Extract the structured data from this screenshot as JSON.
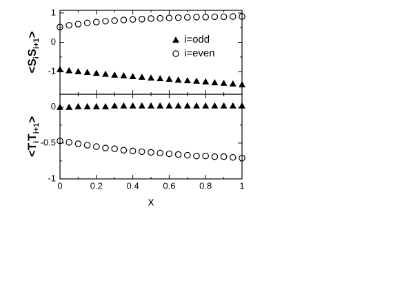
{
  "chart_data": [
    {
      "type": "scatter",
      "y_label": [
        "<S",
        "i",
        "S",
        "i+1",
        ">"
      ],
      "x": [
        0,
        0.05,
        0.1,
        0.15,
        0.2,
        0.25,
        0.3,
        0.35,
        0.4,
        0.45,
        0.5,
        0.55,
        0.6,
        0.65,
        0.7,
        0.75,
        0.8,
        0.85,
        0.9,
        0.95,
        1
      ],
      "series": [
        {
          "name": "i=odd",
          "color": "#000000",
          "marker": "triangle",
          "values": [
            -0.92,
            -0.96,
            -0.99,
            -1.02,
            -1.05,
            -1.08,
            -1.11,
            -1.13,
            -1.16,
            -1.18,
            -1.21,
            -1.23,
            -1.25,
            -1.28,
            -1.3,
            -1.32,
            -1.34,
            -1.37,
            -1.39,
            -1.41,
            -1.44
          ]
        },
        {
          "name": "i=even",
          "color": "#000000",
          "marker": "circle",
          "values": [
            0.52,
            0.58,
            0.62,
            0.66,
            0.69,
            0.72,
            0.74,
            0.76,
            0.78,
            0.79,
            0.81,
            0.82,
            0.83,
            0.84,
            0.85,
            0.86,
            0.86,
            0.87,
            0.87,
            0.88,
            0.88
          ]
        }
      ],
      "xlim": [
        0,
        1
      ],
      "xticks": [
        0,
        0.2,
        0.4,
        0.6,
        0.8,
        1
      ],
      "ylim": [
        -1.77,
        1.09
      ],
      "yticks": [
        -1,
        0,
        1
      ],
      "legend": "center right"
    },
    {
      "type": "scatter",
      "x_label": "x",
      "y_label": [
        "<T",
        "i",
        "T",
        "i+1",
        ">"
      ],
      "x": [
        0,
        0.05,
        0.1,
        0.15,
        0.2,
        0.25,
        0.3,
        0.35,
        0.4,
        0.45,
        0.5,
        0.55,
        0.6,
        0.65,
        0.7,
        0.75,
        0.8,
        0.85,
        0.9,
        0.95,
        1
      ],
      "series": [
        {
          "color": "#000000",
          "marker": "triangle",
          "values": [
            0,
            0,
            0.01,
            0.01,
            0.01,
            0.01,
            0.02,
            0.02,
            0.02,
            0.02,
            0.02,
            0.02,
            0.02,
            0.02,
            0.02,
            0.02,
            0.02,
            0.02,
            0.02,
            0.02,
            0.02
          ]
        },
        {
          "color": "#000000",
          "marker": "circle",
          "values": [
            -0.47,
            -0.49,
            -0.51,
            -0.53,
            -0.55,
            -0.57,
            -0.58,
            -0.6,
            -0.61,
            -0.62,
            -0.63,
            -0.64,
            -0.65,
            -0.66,
            -0.67,
            -0.68,
            -0.68,
            -0.69,
            -0.69,
            -0.7,
            -0.71
          ]
        }
      ],
      "xlim": [
        0,
        1
      ],
      "xticks": [
        0,
        0.2,
        0.4,
        0.6,
        0.8,
        1
      ],
      "ylim": [
        -1,
        0.18
      ],
      "yticks": [
        -1,
        -0.5,
        0
      ]
    }
  ]
}
